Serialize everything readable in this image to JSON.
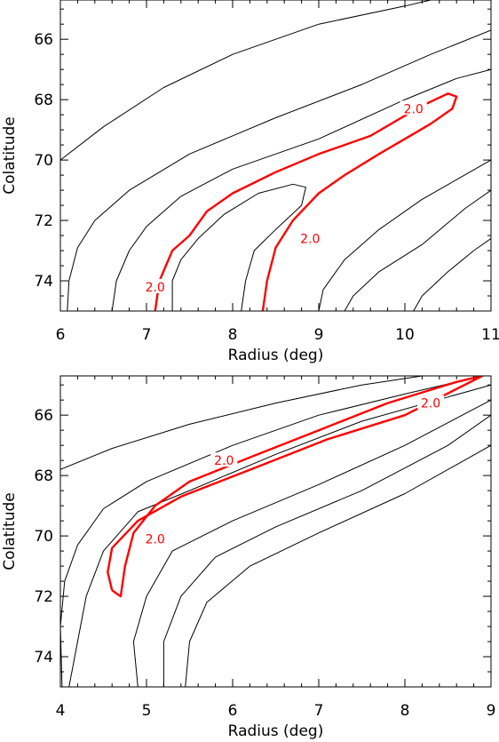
{
  "colors": {
    "axis": "#000000",
    "contour": "#000000",
    "highlight": "#ff0000"
  },
  "chart_data": [
    {
      "type": "contour",
      "xlabel": "Radius (deg)",
      "ylabel": "Colatitude",
      "xlim": [
        6,
        11
      ],
      "ylim": [
        64.7,
        75.0
      ],
      "y_inverted": true,
      "xticks": [
        "6",
        "7",
        "8",
        "9",
        "10",
        "11"
      ],
      "yticks": [
        "66",
        "68",
        "70",
        "72",
        "74"
      ],
      "xtick_values": [
        6,
        7,
        8,
        9,
        10,
        11
      ],
      "ytick_values": [
        66,
        68,
        70,
        72,
        74
      ],
      "contours": [
        {
          "level": "",
          "highlight": false,
          "points": [
            [
              6.0,
              70.0
            ],
            [
              6.5,
              68.9
            ],
            [
              7.2,
              67.6
            ],
            [
              8.0,
              66.5
            ],
            [
              9.0,
              65.5
            ],
            [
              10.0,
              64.9
            ],
            [
              10.3,
              64.7
            ]
          ]
        },
        {
          "level": "",
          "highlight": false,
          "points": [
            [
              6.08,
              75.0
            ],
            [
              6.1,
              74.0
            ],
            [
              6.2,
              72.9
            ],
            [
              6.4,
              72.0
            ],
            [
              6.8,
              71.0
            ],
            [
              7.5,
              69.8
            ],
            [
              8.5,
              68.6
            ],
            [
              9.5,
              67.5
            ],
            [
              10.3,
              66.5
            ],
            [
              11.0,
              65.7
            ]
          ]
        },
        {
          "level": "",
          "highlight": false,
          "points": [
            [
              6.6,
              75.0
            ],
            [
              6.65,
              74.0
            ],
            [
              6.8,
              73.0
            ],
            [
              7.0,
              72.2
            ],
            [
              7.4,
              71.2
            ],
            [
              8.0,
              70.3
            ],
            [
              9.0,
              69.3
            ],
            [
              10.0,
              68.0
            ],
            [
              10.6,
              67.3
            ],
            [
              11.0,
              67.0
            ]
          ]
        },
        {
          "level": "2.0",
          "highlight": true,
          "label_positions": [
            [
              10.1,
              68.3
            ],
            [
              7.1,
              74.2
            ],
            [
              8.9,
              72.6
            ]
          ],
          "points": [
            [
              7.1,
              75.0
            ],
            [
              7.15,
              74.0
            ],
            [
              7.3,
              73.0
            ],
            [
              7.5,
              72.5
            ],
            [
              7.7,
              71.7
            ],
            [
              8.0,
              71.1
            ],
            [
              8.5,
              70.4
            ],
            [
              9.0,
              69.8
            ],
            [
              9.6,
              69.2
            ],
            [
              10.2,
              68.2
            ],
            [
              10.5,
              67.8
            ],
            [
              10.6,
              67.9
            ],
            [
              10.55,
              68.3
            ],
            [
              10.3,
              68.8
            ],
            [
              10.0,
              69.3
            ],
            [
              9.7,
              69.8
            ],
            [
              9.3,
              70.5
            ],
            [
              9.0,
              71.1
            ],
            [
              8.7,
              72.0
            ],
            [
              8.5,
              72.9
            ],
            [
              8.4,
              74.0
            ],
            [
              8.35,
              75.0
            ]
          ]
        },
        {
          "level": "",
          "highlight": false,
          "points": [
            [
              7.3,
              75.0
            ],
            [
              7.3,
              74.0
            ],
            [
              7.4,
              73.3
            ],
            [
              7.6,
              72.6
            ],
            [
              7.9,
              71.8
            ],
            [
              8.3,
              71.1
            ],
            [
              8.7,
              70.8
            ],
            [
              8.85,
              70.9
            ],
            [
              8.8,
              71.5
            ],
            [
              8.5,
              72.3
            ],
            [
              8.25,
              73.0
            ],
            [
              8.15,
              74.0
            ],
            [
              8.1,
              75.0
            ]
          ]
        },
        {
          "level": "",
          "highlight": false,
          "points": [
            [
              9.0,
              75.0
            ],
            [
              9.05,
              74.3
            ],
            [
              9.3,
              73.3
            ],
            [
              9.7,
              72.3
            ],
            [
              10.2,
              71.3
            ],
            [
              11.0,
              70.0
            ]
          ]
        },
        {
          "level": "",
          "highlight": false,
          "points": [
            [
              9.3,
              75.0
            ],
            [
              9.4,
              74.5
            ],
            [
              9.7,
              73.7
            ],
            [
              10.2,
              72.8
            ],
            [
              10.7,
              71.6
            ],
            [
              11.0,
              71.0
            ]
          ]
        },
        {
          "level": "",
          "highlight": false,
          "points": [
            [
              10.1,
              75.0
            ],
            [
              10.2,
              74.5
            ],
            [
              10.5,
              73.7
            ],
            [
              10.8,
              73.0
            ],
            [
              11.0,
              72.6
            ]
          ]
        }
      ]
    },
    {
      "type": "contour",
      "xlabel": "Radius (deg)",
      "ylabel": "Colatitude",
      "xlim": [
        4,
        9
      ],
      "ylim": [
        64.7,
        75.0
      ],
      "y_inverted": true,
      "xticks": [
        "4",
        "5",
        "6",
        "7",
        "8",
        "9"
      ],
      "yticks": [
        "66",
        "68",
        "70",
        "72",
        "74"
      ],
      "xtick_values": [
        4,
        5,
        6,
        7,
        8,
        9
      ],
      "ytick_values": [
        66,
        68,
        70,
        72,
        74
      ],
      "contours": [
        {
          "level": "",
          "highlight": false,
          "points": [
            [
              4.0,
              67.8
            ],
            [
              4.6,
              67.1
            ],
            [
              5.5,
              66.3
            ],
            [
              6.5,
              65.6
            ],
            [
              7.5,
              65.0
            ],
            [
              8.2,
              64.7
            ]
          ]
        },
        {
          "level": "",
          "highlight": false,
          "points": [
            [
              4.02,
              75.0
            ],
            [
              4.0,
              73.0
            ],
            [
              4.05,
              71.5
            ],
            [
              4.2,
              70.3
            ],
            [
              4.5,
              69.1
            ],
            [
              5.0,
              68.2
            ],
            [
              6.0,
              67.0
            ],
            [
              7.0,
              66.0
            ],
            [
              8.0,
              65.3
            ],
            [
              8.9,
              64.7
            ]
          ]
        },
        {
          "level": "",
          "highlight": false,
          "points": [
            [
              4.1,
              75.0
            ],
            [
              4.2,
              73.5
            ],
            [
              4.3,
              72.0
            ],
            [
              4.5,
              70.5
            ],
            [
              4.9,
              69.2
            ],
            [
              5.5,
              68.5
            ],
            [
              6.5,
              67.3
            ],
            [
              7.5,
              66.2
            ],
            [
              8.5,
              65.4
            ],
            [
              9.0,
              65.0
            ]
          ]
        },
        {
          "level": "2.0",
          "highlight": true,
          "label_positions": [
            [
              5.9,
              67.5
            ],
            [
              8.3,
              65.6
            ],
            [
              5.1,
              70.1
            ]
          ],
          "points": [
            [
              4.6,
              71.8
            ],
            [
              4.55,
              71.2
            ],
            [
              4.6,
              70.4
            ],
            [
              4.9,
              69.5
            ],
            [
              5.4,
              68.7
            ],
            [
              6.3,
              67.7
            ],
            [
              7.1,
              66.8
            ],
            [
              8.0,
              66.0
            ],
            [
              8.9,
              64.7
            ],
            [
              8.6,
              64.9
            ],
            [
              7.8,
              65.6
            ],
            [
              7.0,
              66.5
            ],
            [
              6.2,
              67.4
            ],
            [
              5.5,
              68.2
            ],
            [
              5.1,
              69.0
            ],
            [
              4.85,
              69.9
            ],
            [
              4.75,
              71.0
            ],
            [
              4.7,
              72.0
            ],
            [
              4.6,
              71.8
            ]
          ]
        },
        {
          "level": "",
          "highlight": false,
          "points": [
            [
              4.9,
              75.0
            ],
            [
              4.85,
              73.5
            ],
            [
              5.0,
              72.0
            ],
            [
              5.3,
              70.5
            ],
            [
              6.0,
              69.5
            ],
            [
              7.0,
              68.3
            ],
            [
              8.0,
              67.0
            ],
            [
              9.0,
              65.5
            ]
          ]
        },
        {
          "level": "",
          "highlight": false,
          "points": [
            [
              5.2,
              75.0
            ],
            [
              5.2,
              73.5
            ],
            [
              5.4,
              72.0
            ],
            [
              5.8,
              70.7
            ],
            [
              6.5,
              69.7
            ],
            [
              7.5,
              68.5
            ],
            [
              8.5,
              67.0
            ],
            [
              9.0,
              66.0
            ]
          ]
        },
        {
          "level": "",
          "highlight": false,
          "points": [
            [
              5.45,
              75.0
            ],
            [
              5.5,
              73.5
            ],
            [
              5.7,
              72.2
            ],
            [
              6.2,
              71.0
            ],
            [
              7.0,
              69.9
            ],
            [
              8.0,
              68.6
            ],
            [
              9.0,
              67.0
            ]
          ]
        }
      ]
    }
  ]
}
